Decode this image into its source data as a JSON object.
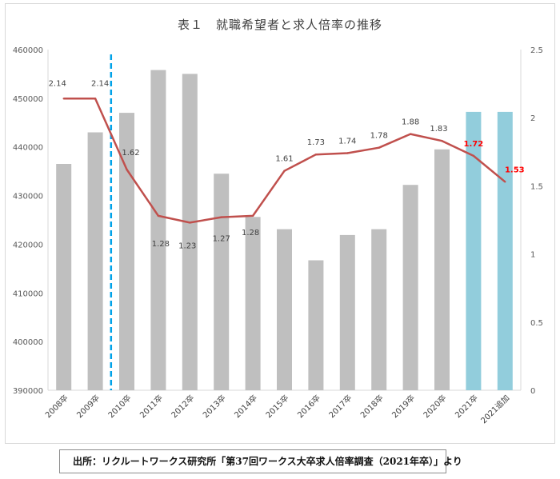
{
  "chart_data": {
    "type": "bar",
    "title": "表１　就職希望者と求人倍率の推移",
    "categories": [
      "2008卒",
      "2009卒",
      "2010卒",
      "2011卒",
      "2012卒",
      "2013卒",
      "2014卒",
      "2015卒",
      "2016卒",
      "2017卒",
      "2018卒",
      "2019卒",
      "2020卒",
      "2021卒",
      "2021追加"
    ],
    "series": [
      {
        "name": "就職希望者",
        "type": "bar",
        "axis": "left",
        "values": [
          436500,
          443000,
          447000,
          455800,
          455000,
          434500,
          425600,
          423100,
          416700,
          421900,
          423100,
          432200,
          439500,
          447200,
          447200
        ],
        "colors": [
          "#bfbfbf",
          "#bfbfbf",
          "#bfbfbf",
          "#bfbfbf",
          "#bfbfbf",
          "#bfbfbf",
          "#bfbfbf",
          "#bfbfbf",
          "#bfbfbf",
          "#bfbfbf",
          "#bfbfbf",
          "#bfbfbf",
          "#bfbfbf",
          "#92cddc",
          "#92cddc"
        ]
      },
      {
        "name": "求人倍率",
        "type": "line",
        "axis": "right",
        "values": [
          2.14,
          2.14,
          1.62,
          1.28,
          1.23,
          1.27,
          1.28,
          1.61,
          1.73,
          1.74,
          1.78,
          1.88,
          1.83,
          1.72,
          1.53
        ],
        "labels": [
          "2.14",
          "2.14",
          "1.62",
          "1.28",
          "1.23",
          "1.27",
          "1.28",
          "1.61",
          "1.73",
          "1.74",
          "1.78",
          "1.88",
          "1.83",
          "1.72",
          "1.53"
        ],
        "color": "#c0504d"
      }
    ],
    "y_left": {
      "min": 390000,
      "max": 460000,
      "ticks": [
        "390000",
        "400000",
        "410000",
        "420000",
        "430000",
        "440000",
        "450000",
        "460000"
      ]
    },
    "y_right": {
      "min": 0,
      "max": 2.5,
      "ticks": [
        "0",
        "0.5",
        "1",
        "1.5",
        "2",
        "2.5"
      ]
    },
    "marker_line": {
      "style": "dashed",
      "color": "#00a2e8",
      "between": [
        "2009卒",
        "2010卒"
      ]
    },
    "highlight_label_color": "#ff0000",
    "grid": false,
    "legend": "none"
  },
  "source": "出所：リクルートワークス研究所「第37回ワークス大卒求人倍率調査（2021年卒）」より"
}
